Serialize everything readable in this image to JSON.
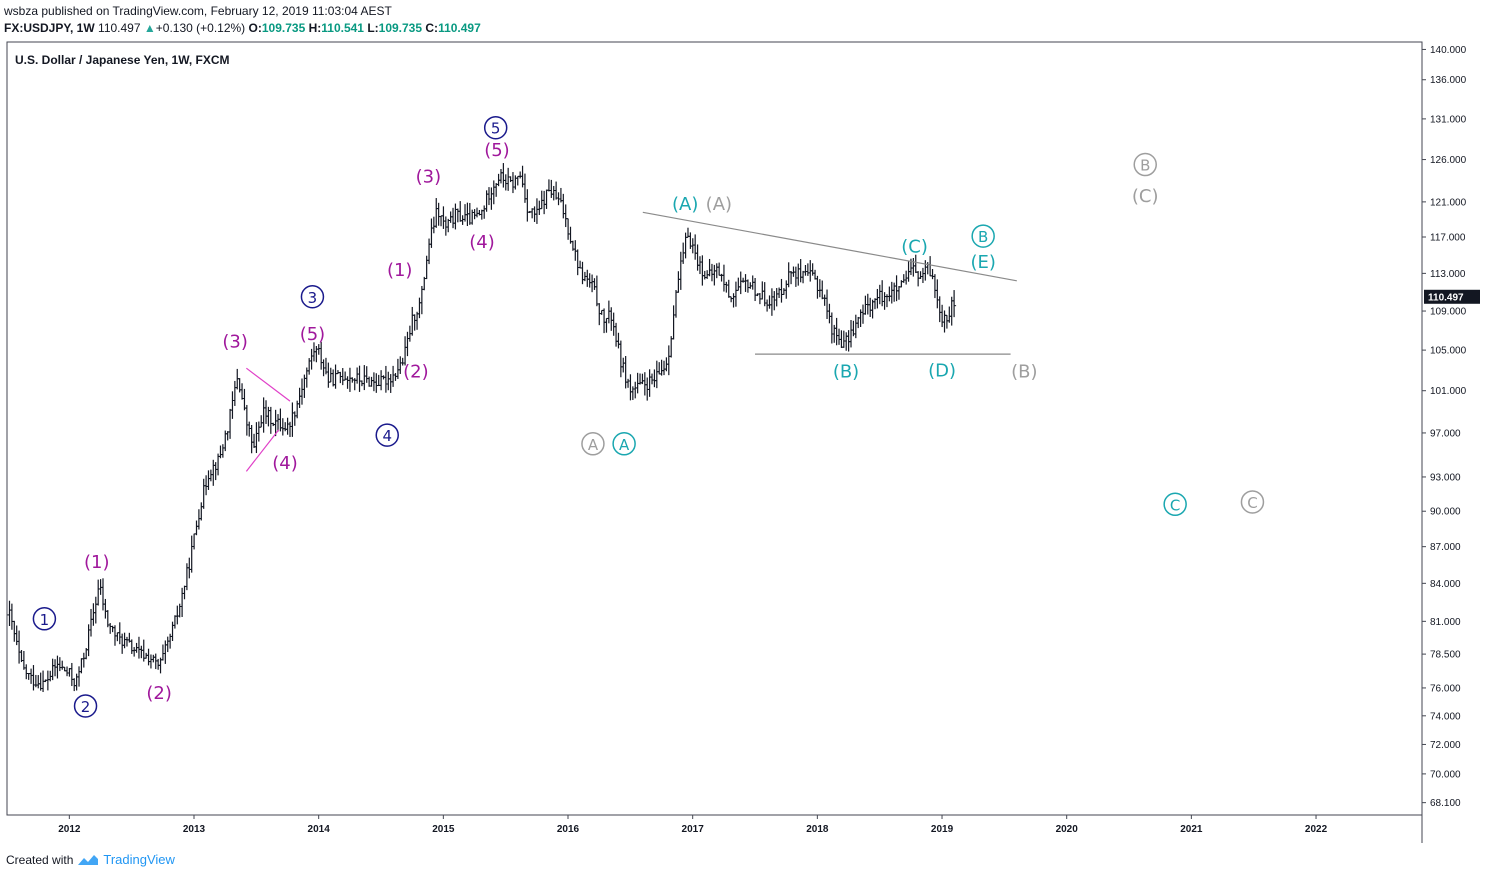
{
  "header": {
    "author": "wsbza",
    "published": "published on TradingView.com, February 12, 2019 11:03:04 AEST",
    "symbol": "FX:USDJPY, 1W",
    "last": "110.497",
    "change": "+0.130 (+0.12%)",
    "o_label": "O:",
    "o": "109.735",
    "h_label": "H:",
    "h": "110.541",
    "l_label": "L:",
    "l": "109.735",
    "c_label": "C:",
    "c": "110.497"
  },
  "footer": {
    "created_with": "Created with",
    "brand": "TradingView"
  },
  "colors": {
    "navy": "#1a1a8c",
    "magenta": "#a0189c",
    "teal": "#1aa7b0",
    "grey": "#9e9e9e",
    "pink": "#e040c8",
    "candle": "#131722"
  },
  "chart_data": {
    "type": "ohlc",
    "title": "U.S. Dollar / Japanese Yen, 1W, FXCM",
    "y_axis": {
      "scale": "log",
      "ylim": [
        67.3,
        141.0
      ],
      "ticks": [
        "140.000",
        "136.000",
        "131.000",
        "126.000",
        "121.000",
        "117.000",
        "113.000",
        "109.000",
        "105.000",
        "101.000",
        "97.000",
        "93.000",
        "90.000",
        "87.000",
        "84.000",
        "81.000",
        "78.500",
        "76.000",
        "74.000",
        "72.000",
        "70.000",
        "68.100"
      ],
      "last_price_label": "110.497"
    },
    "x_axis": {
      "xlim": [
        2011.5,
        2022.85
      ],
      "ticks": [
        "2012",
        "2013",
        "2014",
        "2015",
        "2016",
        "2017",
        "2018",
        "2019",
        "2020",
        "2021",
        "2022"
      ]
    },
    "price_path": [
      [
        2011.52,
        81.5
      ],
      [
        2011.62,
        77.5
      ],
      [
        2011.7,
        76.6
      ],
      [
        2011.8,
        76.3
      ],
      [
        2011.9,
        77.7
      ],
      [
        2012.0,
        77.0
      ],
      [
        2012.05,
        76.3
      ],
      [
        2012.12,
        78.5
      ],
      [
        2012.2,
        82.0
      ],
      [
        2012.24,
        83.9
      ],
      [
        2012.3,
        81.0
      ],
      [
        2012.38,
        79.8
      ],
      [
        2012.46,
        79.3
      ],
      [
        2012.55,
        78.6
      ],
      [
        2012.65,
        78.2
      ],
      [
        2012.72,
        77.5
      ],
      [
        2012.8,
        79.5
      ],
      [
        2012.88,
        82.0
      ],
      [
        2012.96,
        85.5
      ],
      [
        2013.05,
        90.5
      ],
      [
        2013.12,
        93.5
      ],
      [
        2013.2,
        94.5
      ],
      [
        2013.28,
        98.0
      ],
      [
        2013.35,
        102.5
      ],
      [
        2013.42,
        98.0
      ],
      [
        2013.48,
        95.5
      ],
      [
        2013.55,
        99.0
      ],
      [
        2013.65,
        98.0
      ],
      [
        2013.75,
        97.5
      ],
      [
        2013.82,
        99.5
      ],
      [
        2013.88,
        102.0
      ],
      [
        2013.96,
        105.0
      ],
      [
        2014.0,
        104.8
      ],
      [
        2014.08,
        102.0
      ],
      [
        2014.2,
        102.5
      ],
      [
        2014.35,
        102.0
      ],
      [
        2014.5,
        101.8
      ],
      [
        2014.6,
        102.5
      ],
      [
        2014.68,
        104.0
      ],
      [
        2014.75,
        108.0
      ],
      [
        2014.82,
        110.0
      ],
      [
        2014.88,
        116.0
      ],
      [
        2014.95,
        120.0
      ],
      [
        2015.02,
        118.0
      ],
      [
        2015.1,
        119.5
      ],
      [
        2015.2,
        119.0
      ],
      [
        2015.3,
        119.5
      ],
      [
        2015.38,
        122.5
      ],
      [
        2015.45,
        124.0
      ],
      [
        2015.55,
        123.0
      ],
      [
        2015.62,
        124.2
      ],
      [
        2015.68,
        120.0
      ],
      [
        2015.75,
        119.5
      ],
      [
        2015.85,
        122.5
      ],
      [
        2015.95,
        120.5
      ],
      [
        2016.02,
        117.0
      ],
      [
        2016.1,
        113.0
      ],
      [
        2016.2,
        111.5
      ],
      [
        2016.28,
        108.0
      ],
      [
        2016.35,
        108.5
      ],
      [
        2016.42,
        104.0
      ],
      [
        2016.5,
        101.0
      ],
      [
        2016.6,
        101.5
      ],
      [
        2016.7,
        102.0
      ],
      [
        2016.8,
        104.0
      ],
      [
        2016.88,
        112.0
      ],
      [
        2016.96,
        117.5
      ],
      [
        2017.05,
        114.0
      ],
      [
        2017.12,
        112.5
      ],
      [
        2017.2,
        113.5
      ],
      [
        2017.3,
        110.5
      ],
      [
        2017.38,
        111.5
      ],
      [
        2017.45,
        112.0
      ],
      [
        2017.55,
        110.5
      ],
      [
        2017.65,
        110.0
      ],
      [
        2017.72,
        111.5
      ],
      [
        2017.8,
        113.5
      ],
      [
        2017.88,
        112.5
      ],
      [
        2017.96,
        112.8
      ],
      [
        2018.05,
        110.5
      ],
      [
        2018.12,
        107.0
      ],
      [
        2018.22,
        105.5
      ],
      [
        2018.3,
        107.5
      ],
      [
        2018.4,
        109.5
      ],
      [
        2018.5,
        110.5
      ],
      [
        2018.6,
        111.0
      ],
      [
        2018.68,
        111.5
      ],
      [
        2018.76,
        113.5
      ],
      [
        2018.82,
        112.5
      ],
      [
        2018.9,
        113.5
      ],
      [
        2018.96,
        110.5
      ],
      [
        2019.0,
        108.5
      ],
      [
        2019.04,
        108.5
      ],
      [
        2019.08,
        109.5
      ],
      [
        2019.11,
        110.5
      ]
    ],
    "trendlines": [
      {
        "from": [
          2016.6,
          119.8
        ],
        "to": [
          2019.6,
          112.2
        ],
        "color": "#8a8a8a"
      },
      {
        "from": [
          2017.5,
          104.6
        ],
        "to": [
          2019.55,
          104.6
        ],
        "color": "#8a8a8a"
      },
      {
        "from": [
          2013.42,
          103.2
        ],
        "to": [
          2013.77,
          100.0
        ],
        "color": "#e040c8"
      },
      {
        "from": [
          2013.42,
          93.5
        ],
        "to": [
          2013.68,
          97.3
        ],
        "color": "#e040c8"
      }
    ],
    "annotations": [
      {
        "text": "1",
        "x": 2011.8,
        "y": 81.2,
        "style": "circle",
        "color": "#1a1a8c"
      },
      {
        "text": "2",
        "x": 2012.13,
        "y": 74.7,
        "style": "circle",
        "color": "#1a1a8c"
      },
      {
        "text": "(1)",
        "x": 2012.22,
        "y": 85.7,
        "style": "paren",
        "color": "#a0189c"
      },
      {
        "text": "(2)",
        "x": 2012.72,
        "y": 75.6,
        "style": "paren",
        "color": "#a0189c"
      },
      {
        "text": "(3)",
        "x": 2013.33,
        "y": 105.8,
        "style": "paren",
        "color": "#a0189c"
      },
      {
        "text": "(4)",
        "x": 2013.73,
        "y": 94.2,
        "style": "paren",
        "color": "#a0189c"
      },
      {
        "text": "3",
        "x": 2013.95,
        "y": 110.5,
        "style": "circle",
        "color": "#1a1a8c"
      },
      {
        "text": "(5)",
        "x": 2013.95,
        "y": 106.6,
        "style": "paren",
        "color": "#a0189c"
      },
      {
        "text": "4",
        "x": 2014.55,
        "y": 96.8,
        "style": "circle",
        "color": "#1a1a8c"
      },
      {
        "text": "(2)",
        "x": 2014.78,
        "y": 102.8,
        "style": "paren",
        "color": "#a0189c"
      },
      {
        "text": "(1)",
        "x": 2014.65,
        "y": 113.3,
        "style": "paren",
        "color": "#a0189c"
      },
      {
        "text": "(3)",
        "x": 2014.88,
        "y": 123.9,
        "style": "paren",
        "color": "#a0189c"
      },
      {
        "text": "(4)",
        "x": 2015.31,
        "y": 116.4,
        "style": "paren",
        "color": "#a0189c"
      },
      {
        "text": "5",
        "x": 2015.42,
        "y": 129.9,
        "style": "circle",
        "color": "#1a1a8c"
      },
      {
        "text": "(5)",
        "x": 2015.43,
        "y": 127.1,
        "style": "paren",
        "color": "#a0189c"
      },
      {
        "text": "A",
        "x": 2016.2,
        "y": 96.0,
        "style": "circle",
        "color": "#9e9e9e"
      },
      {
        "text": "A",
        "x": 2016.45,
        "y": 96.0,
        "style": "circle",
        "color": "#1aa7b0"
      },
      {
        "text": "(A)",
        "x": 2016.94,
        "y": 120.7,
        "style": "paren",
        "color": "#1aa7b0"
      },
      {
        "text": "(A)",
        "x": 2017.21,
        "y": 120.7,
        "style": "paren",
        "color": "#9e9e9e"
      },
      {
        "text": "(B)",
        "x": 2018.23,
        "y": 102.8,
        "style": "paren",
        "color": "#1aa7b0"
      },
      {
        "text": "(C)",
        "x": 2018.78,
        "y": 115.9,
        "style": "paren",
        "color": "#1aa7b0"
      },
      {
        "text": "(D)",
        "x": 2019.0,
        "y": 102.9,
        "style": "paren",
        "color": "#1aa7b0"
      },
      {
        "text": "B",
        "x": 2019.33,
        "y": 117.1,
        "style": "circle",
        "color": "#1aa7b0"
      },
      {
        "text": "(E)",
        "x": 2019.33,
        "y": 114.2,
        "style": "paren",
        "color": "#1aa7b0"
      },
      {
        "text": "(B)",
        "x": 2019.66,
        "y": 102.8,
        "style": "paren",
        "color": "#9e9e9e"
      },
      {
        "text": "B",
        "x": 2020.63,
        "y": 125.4,
        "style": "circle",
        "color": "#9e9e9e"
      },
      {
        "text": "(C)",
        "x": 2020.63,
        "y": 121.6,
        "style": "paren",
        "color": "#9e9e9e"
      },
      {
        "text": "C",
        "x": 2020.87,
        "y": 90.6,
        "style": "circle",
        "color": "#1aa7b0"
      },
      {
        "text": "C",
        "x": 2021.49,
        "y": 90.8,
        "style": "circle",
        "color": "#9e9e9e"
      }
    ]
  }
}
